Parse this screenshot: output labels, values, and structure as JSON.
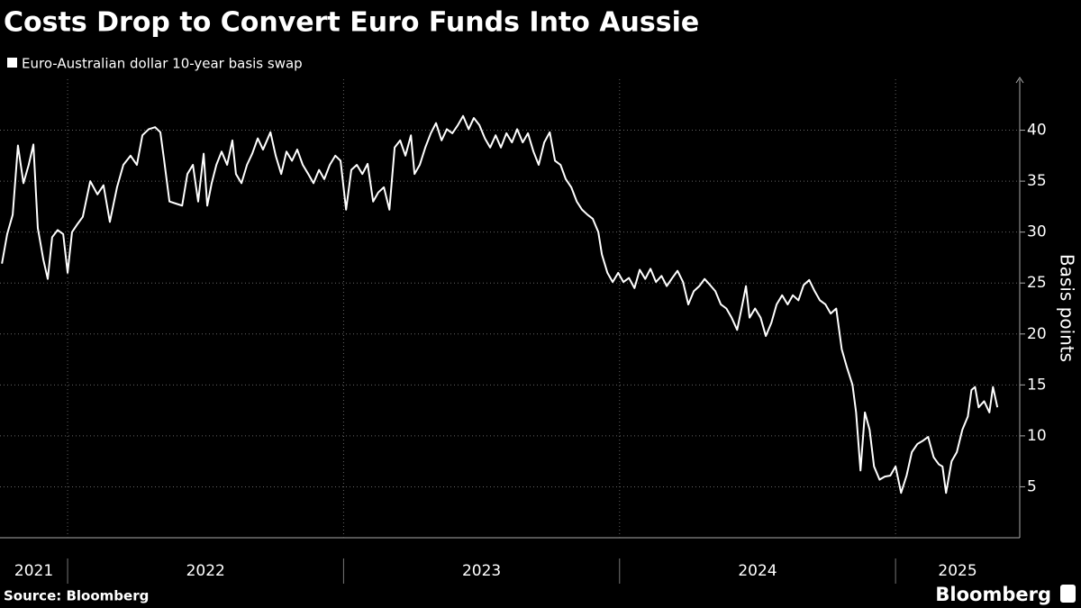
{
  "chart_data": {
    "type": "line",
    "title": "Costs Drop to Convert Euro Funds Into Aussie",
    "y_axis_label": "Basis points",
    "source": "Source: Bloomberg",
    "logo": "Bloomberg",
    "x": [
      2021.762,
      2021.781,
      2021.801,
      2021.82,
      2021.84,
      2021.859,
      2021.876,
      2021.892,
      2021.912,
      2021.928,
      2021.944,
      2021.964,
      2021.984,
      2022.0,
      2022.016,
      2022.036,
      2022.055,
      2022.082,
      2022.108,
      2022.13,
      2022.153,
      2022.179,
      2022.202,
      2022.228,
      2022.251,
      2022.271,
      2022.294,
      2022.317,
      2022.336,
      2022.349,
      2022.369,
      2022.392,
      2022.415,
      2022.434,
      2022.454,
      2022.473,
      2022.493,
      2022.506,
      2022.522,
      2022.539,
      2022.558,
      2022.578,
      2022.597,
      2022.61,
      2022.63,
      2022.65,
      2022.669,
      2022.689,
      2022.708,
      2022.735,
      2022.754,
      2022.774,
      2022.793,
      2022.813,
      2022.832,
      2022.852,
      2022.872,
      2022.891,
      2022.911,
      2022.93,
      2022.95,
      2022.97,
      2022.989,
      2023.009,
      2023.028,
      2023.048,
      2023.068,
      2023.087,
      2023.107,
      2023.126,
      2023.146,
      2023.166,
      2023.185,
      2023.205,
      2023.224,
      2023.244,
      2023.257,
      2023.276,
      2023.296,
      2023.316,
      2023.335,
      2023.355,
      2023.374,
      2023.394,
      2023.414,
      2023.433,
      2023.453,
      2023.472,
      2023.492,
      2023.512,
      2023.531,
      2023.551,
      2023.57,
      2023.59,
      2023.61,
      2023.629,
      2023.649,
      2023.668,
      2023.688,
      2023.707,
      2023.727,
      2023.747,
      2023.766,
      2023.786,
      2023.805,
      2023.825,
      2023.845,
      2023.864,
      2023.884,
      2023.903,
      2023.923,
      2023.936,
      2023.956,
      2023.975,
      2023.995,
      2024.014,
      2024.034,
      2024.054,
      2024.073,
      2024.093,
      2024.112,
      2024.132,
      2024.152,
      2024.171,
      2024.191,
      2024.21,
      2024.23,
      2024.249,
      2024.269,
      2024.289,
      2024.308,
      2024.328,
      2024.347,
      2024.367,
      2024.387,
      2024.406,
      2024.426,
      2024.445,
      2024.458,
      2024.471,
      2024.491,
      2024.511,
      2024.53,
      2024.55,
      2024.569,
      2024.589,
      2024.609,
      2024.628,
      2024.648,
      2024.667,
      2024.687,
      2024.707,
      2024.726,
      2024.746,
      2024.765,
      2024.785,
      2024.805,
      2024.824,
      2024.844,
      2024.857,
      2024.873,
      2024.889,
      2024.906,
      2024.922,
      2024.942,
      2024.961,
      2024.981,
      2025.0,
      2025.02,
      2025.04,
      2025.059,
      2025.079,
      2025.098,
      2025.118,
      2025.138,
      2025.157,
      2025.17,
      2025.183,
      2025.203,
      2025.222,
      2025.242,
      2025.262,
      2025.275,
      2025.288,
      2025.301,
      2025.321,
      2025.34,
      2025.353,
      2025.369
    ],
    "series": [
      {
        "name": "Euro-Australian dollar 10-year basis swap",
        "color": "#ffffff",
        "values": [
          26.9,
          29.8,
          31.7,
          38.5,
          34.8,
          36.6,
          38.6,
          30.4,
          27.3,
          25.4,
          29.5,
          30.2,
          29.8,
          26.0,
          30.0,
          30.8,
          31.5,
          35.0,
          33.7,
          34.6,
          31.0,
          34.4,
          36.6,
          37.5,
          36.6,
          39.5,
          40.1,
          40.3,
          39.8,
          37.2,
          33.0,
          32.8,
          32.6,
          35.7,
          36.6,
          33.0,
          37.7,
          32.6,
          34.8,
          36.6,
          37.9,
          36.6,
          39.0,
          35.7,
          34.8,
          36.6,
          37.7,
          39.2,
          38.1,
          39.8,
          37.5,
          35.7,
          37.9,
          37.0,
          38.1,
          36.6,
          35.7,
          34.8,
          36.1,
          35.2,
          36.6,
          37.5,
          37.0,
          32.2,
          36.1,
          36.6,
          35.7,
          36.7,
          33.0,
          33.9,
          34.4,
          32.2,
          38.3,
          39.0,
          37.5,
          39.5,
          35.7,
          36.6,
          38.3,
          39.7,
          40.7,
          39.0,
          40.1,
          39.7,
          40.5,
          41.4,
          40.1,
          41.2,
          40.5,
          39.2,
          38.3,
          39.5,
          38.3,
          39.7,
          38.8,
          40.1,
          38.8,
          39.7,
          37.9,
          36.6,
          38.8,
          39.8,
          37.0,
          36.6,
          35.2,
          34.4,
          33.0,
          32.2,
          31.7,
          31.3,
          30.0,
          27.8,
          26.0,
          25.1,
          26.0,
          25.1,
          25.5,
          24.5,
          26.3,
          25.4,
          26.4,
          25.1,
          25.7,
          24.7,
          25.5,
          26.2,
          25.1,
          22.9,
          24.2,
          24.7,
          25.4,
          24.8,
          24.2,
          22.9,
          22.5,
          21.6,
          20.4,
          22.9,
          24.7,
          21.6,
          22.5,
          21.6,
          19.8,
          21.1,
          22.9,
          23.8,
          22.9,
          23.8,
          23.3,
          24.8,
          25.3,
          24.2,
          23.3,
          22.9,
          22.0,
          22.5,
          18.5,
          16.7,
          15.0,
          12.3,
          6.6,
          12.3,
          10.6,
          7.0,
          5.7,
          6.0,
          6.1,
          7.0,
          4.4,
          6.1,
          8.4,
          9.2,
          9.5,
          9.9,
          7.9,
          7.2,
          7.0,
          4.4,
          7.5,
          8.4,
          10.6,
          11.9,
          14.5,
          14.8,
          12.8,
          13.4,
          12.3,
          14.8,
          12.8
        ]
      }
    ],
    "xlim": [
      2021.755,
      2025.45
    ],
    "xticks": [
      2021,
      2022,
      2023,
      2024,
      2025
    ],
    "ylim": [
      0,
      45
    ],
    "yticks": [
      5,
      10,
      15,
      20,
      25,
      30,
      35,
      40
    ],
    "grid": true
  }
}
